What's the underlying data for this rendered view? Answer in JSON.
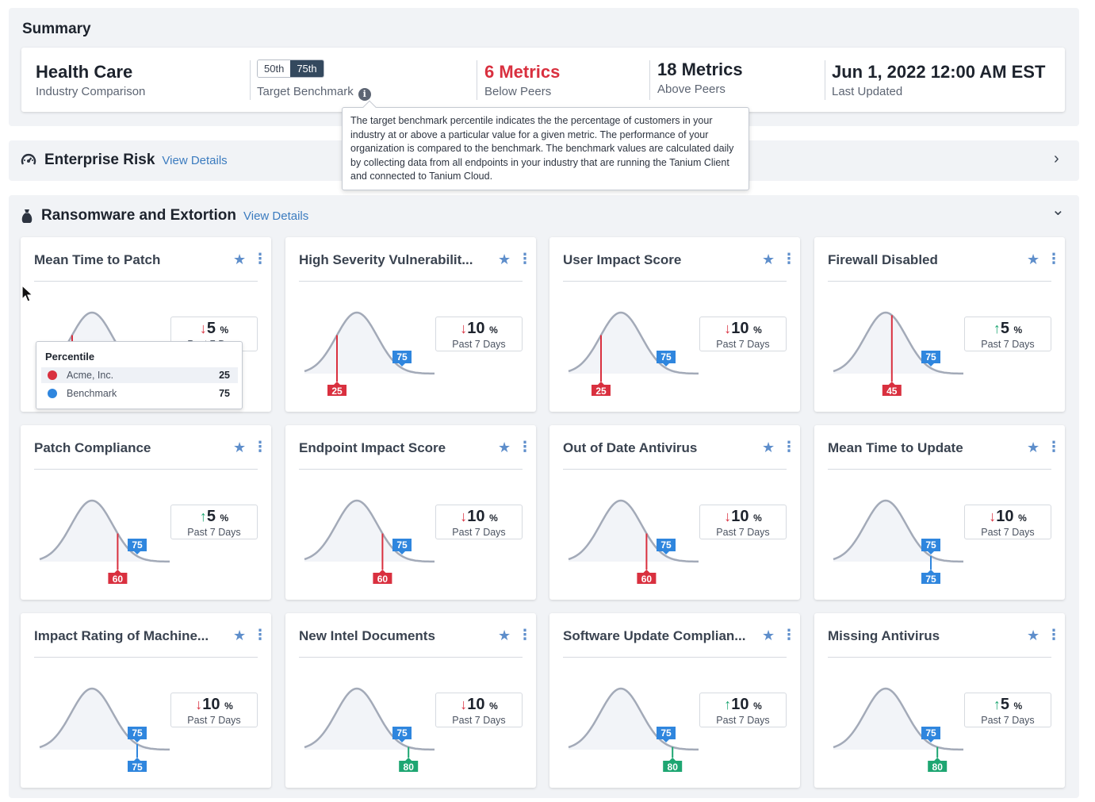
{
  "summary": {
    "title": "Summary",
    "industry": {
      "value": "Health Care",
      "label": "Industry Comparison"
    },
    "benchmark": {
      "options": [
        "50th",
        "75th"
      ],
      "selected": "75th",
      "label": "Target Benchmark"
    },
    "below": {
      "value": "6 Metrics",
      "label": "Below Peers"
    },
    "above": {
      "value": "18 Metrics",
      "label": "Above Peers"
    },
    "updated": {
      "value": "Jun 1, 2022 12:00 AM EST",
      "label": "Last Updated"
    }
  },
  "tooltip": {
    "text": "The target benchmark percentile indicates the the percentage of customers in your industry at or above a particular value for a given metric. The performance of your organization is compared to the benchmark. The benchmark values are calculated daily by collecting data from all endpoints in your industry that are running the Tanium Client and connected to Tanium Cloud."
  },
  "sections": {
    "enterprise": {
      "title": "Enterprise Risk",
      "link": "View Details",
      "icon": "gauge-icon",
      "chevron": "›"
    },
    "ransomware": {
      "title": "Ransomware and Extortion",
      "link": "View Details",
      "icon": "money-bag-icon",
      "chevron": "⌄"
    }
  },
  "colors": {
    "red": "#d9303f",
    "blue": "#2f86de",
    "green": "#1ea672"
  },
  "percentile_tip": {
    "title": "Percentile",
    "rows": [
      {
        "label": "Acme, Inc.",
        "value": "25",
        "color": "#d9303f"
      },
      {
        "label": "Benchmark",
        "value": "75",
        "color": "#2f86de"
      }
    ]
  },
  "cards": [
    {
      "title": "Mean Time to Patch",
      "benchmark": 75,
      "value": 25,
      "status": "red",
      "trend": "down",
      "change": "5",
      "unit": "%",
      "period": "Past 7 Days"
    },
    {
      "title": "High Severity Vulnerabilit...",
      "benchmark": 75,
      "value": 25,
      "status": "red",
      "trend": "down",
      "change": "10",
      "unit": "%",
      "period": "Past 7 Days"
    },
    {
      "title": "User Impact Score",
      "benchmark": 75,
      "value": 25,
      "status": "red",
      "trend": "down",
      "change": "10",
      "unit": "%",
      "period": "Past 7 Days"
    },
    {
      "title": "Firewall Disabled",
      "benchmark": 75,
      "value": 45,
      "status": "red",
      "trend": "up",
      "change": "5",
      "unit": "%",
      "period": "Past 7 Days"
    },
    {
      "title": "Patch Compliance",
      "benchmark": 75,
      "value": 60,
      "status": "red",
      "trend": "up",
      "change": "5",
      "unit": "%",
      "period": "Past 7 Days"
    },
    {
      "title": "Endpoint Impact Score",
      "benchmark": 75,
      "value": 60,
      "status": "red",
      "trend": "down",
      "change": "10",
      "unit": "%",
      "period": "Past 7 Days"
    },
    {
      "title": "Out of Date Antivirus",
      "benchmark": 75,
      "value": 60,
      "status": "red",
      "trend": "down",
      "change": "10",
      "unit": "%",
      "period": "Past 7 Days"
    },
    {
      "title": "Mean Time to Update",
      "benchmark": 75,
      "value": 75,
      "status": "blue",
      "trend": "down",
      "change": "10",
      "unit": "%",
      "period": "Past 7 Days"
    },
    {
      "title": "Impact Rating of Machine...",
      "benchmark": 75,
      "value": 75,
      "status": "blue",
      "trend": "down",
      "change": "10",
      "unit": "%",
      "period": "Past 7 Days"
    },
    {
      "title": "New Intel Documents",
      "benchmark": 75,
      "value": 80,
      "status": "green",
      "trend": "down",
      "change": "10",
      "unit": "%",
      "period": "Past 7 Days"
    },
    {
      "title": "Software Update Complian...",
      "benchmark": 75,
      "value": 80,
      "status": "green",
      "trend": "up",
      "change": "10",
      "unit": "%",
      "period": "Past 7 Days"
    },
    {
      "title": "Missing Antivirus",
      "benchmark": 75,
      "value": 80,
      "status": "green",
      "trend": "up",
      "change": "5",
      "unit": "%",
      "period": "Past 7 Days"
    }
  ]
}
